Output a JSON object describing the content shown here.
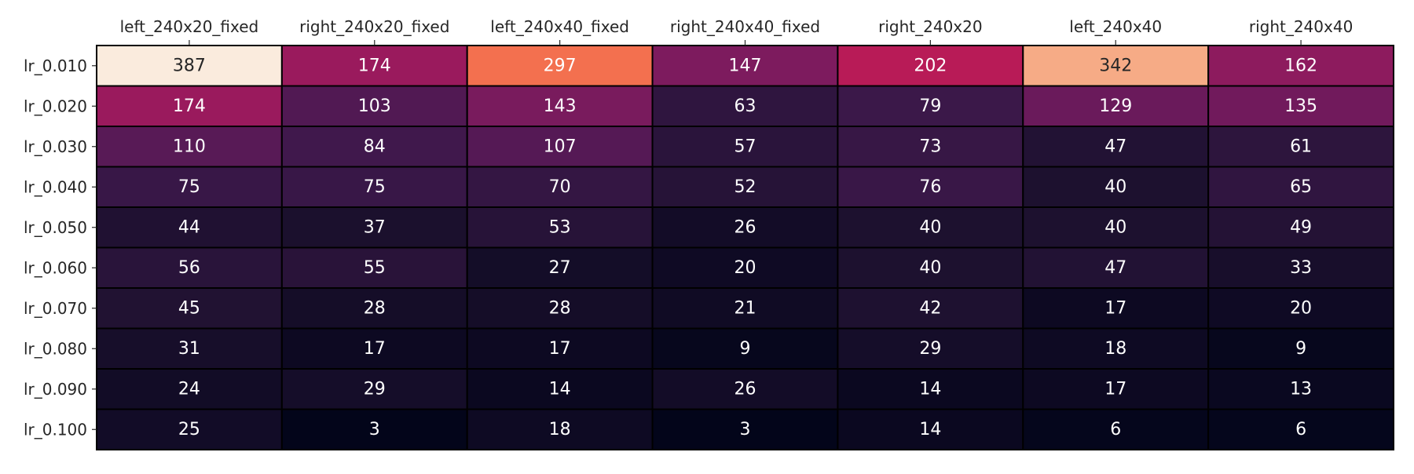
{
  "chart_data": {
    "type": "heatmap",
    "colormap": "rocket",
    "columns": [
      "left_240x20_fixed",
      "right_240x20_fixed",
      "left_240x40_fixed",
      "right_240x40_fixed",
      "right_240x20",
      "left_240x40",
      "right_240x40"
    ],
    "rows": [
      "lr_0.010",
      "lr_0.020",
      "lr_0.030",
      "lr_0.040",
      "lr_0.050",
      "lr_0.060",
      "lr_0.070",
      "lr_0.080",
      "lr_0.090",
      "lr_0.100"
    ],
    "values": [
      [
        387,
        174,
        297,
        147,
        202,
        342,
        162
      ],
      [
        174,
        103,
        143,
        63,
        79,
        129,
        135
      ],
      [
        110,
        84,
        107,
        57,
        73,
        47,
        61
      ],
      [
        75,
        75,
        70,
        52,
        76,
        40,
        65
      ],
      [
        44,
        37,
        53,
        26,
        40,
        40,
        49
      ],
      [
        56,
        55,
        27,
        20,
        40,
        47,
        33
      ],
      [
        45,
        28,
        28,
        21,
        42,
        17,
        20
      ],
      [
        31,
        17,
        17,
        9,
        29,
        18,
        9
      ],
      [
        24,
        29,
        14,
        26,
        14,
        17,
        13
      ],
      [
        25,
        3,
        18,
        3,
        14,
        6,
        6
      ]
    ],
    "x_axis_position": "top",
    "colorbar": false,
    "annotations": true
  }
}
